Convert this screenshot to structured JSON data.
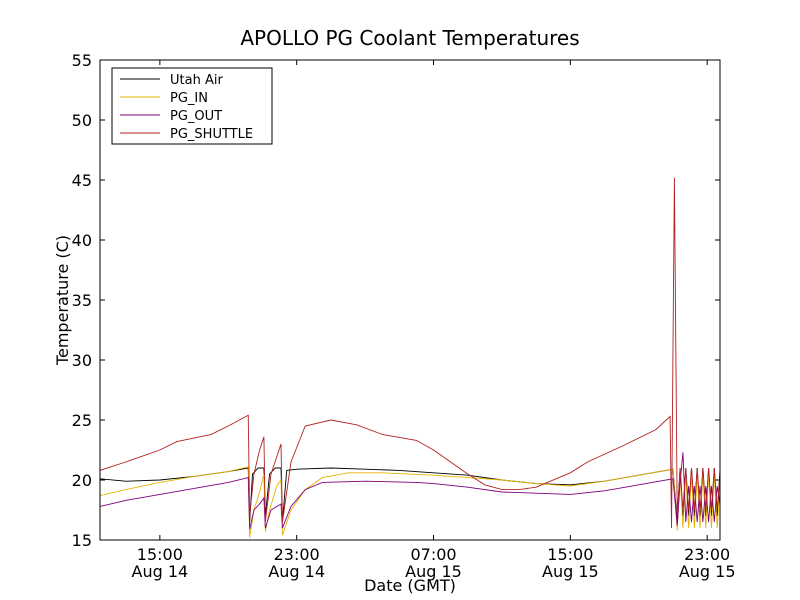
{
  "chart_data": {
    "type": "line",
    "title": "APOLLO PG Coolant Temperatures",
    "xlabel": "Date (GMT)",
    "ylabel": "Temperature (C)",
    "ylim": [
      15,
      55
    ],
    "xlim": [
      "2014-08-14 11:30",
      "2014-08-15 23:45"
    ],
    "grid": false,
    "legend_position": "top-left",
    "x_ticks": [
      {
        "x": "2014-08-14 15:00",
        "line1": "15:00",
        "line2": "Aug 14"
      },
      {
        "x": "2014-08-14 23:00",
        "line1": "23:00",
        "line2": "Aug 14"
      },
      {
        "x": "2014-08-15 07:00",
        "line1": "07:00",
        "line2": "Aug 15"
      },
      {
        "x": "2014-08-15 15:00",
        "line1": "15:00",
        "line2": "Aug 15"
      },
      {
        "x": "2014-08-15 23:00",
        "line1": "23:00",
        "line2": "Aug 15"
      }
    ],
    "y_ticks": [
      15,
      20,
      25,
      30,
      35,
      40,
      45,
      50,
      55
    ],
    "series": [
      {
        "name": "Utah Air",
        "color": "#000000",
        "points": [
          [
            "2014-08-14 11:30",
            20.1
          ],
          [
            "2014-08-14 13:00",
            19.9
          ],
          [
            "2014-08-14 15:00",
            20.0
          ],
          [
            "2014-08-14 17:00",
            20.3
          ],
          [
            "2014-08-14 19:00",
            20.7
          ],
          [
            "2014-08-14 20:10",
            21.0
          ],
          [
            "2014-08-14 20:15",
            16.5
          ],
          [
            "2014-08-14 20:25",
            20.5
          ],
          [
            "2014-08-14 20:45",
            21.0
          ],
          [
            "2014-08-14 21:05",
            21.0
          ],
          [
            "2014-08-14 21:10",
            17.0
          ],
          [
            "2014-08-14 21:25",
            20.5
          ],
          [
            "2014-08-14 21:45",
            21.0
          ],
          [
            "2014-08-14 22:05",
            21.0
          ],
          [
            "2014-08-14 22:10",
            16.5
          ],
          [
            "2014-08-14 22:25",
            20.8
          ],
          [
            "2014-08-14 23:00",
            20.9
          ],
          [
            "2014-08-15 01:00",
            21.0
          ],
          [
            "2014-08-15 03:00",
            20.9
          ],
          [
            "2014-08-15 05:00",
            20.8
          ],
          [
            "2014-08-15 07:00",
            20.6
          ],
          [
            "2014-08-15 09:00",
            20.4
          ],
          [
            "2014-08-15 11:00",
            20.0
          ],
          [
            "2014-08-15 13:00",
            19.7
          ],
          [
            "2014-08-15 15:00",
            19.6
          ],
          [
            "2014-08-15 17:00",
            19.9
          ],
          [
            "2014-08-15 19:00",
            20.4
          ],
          [
            "2014-08-15 21:00",
            20.9
          ],
          [
            "2014-08-15 21:15",
            16.5
          ],
          [
            "2014-08-15 21:25",
            21.0
          ],
          [
            "2014-08-15 21:35",
            17.0
          ],
          [
            "2014-08-15 21:45",
            21.0
          ],
          [
            "2014-08-15 21:55",
            17.0
          ],
          [
            "2014-08-15 22:05",
            21.0
          ],
          [
            "2014-08-15 22:15",
            17.0
          ],
          [
            "2014-08-15 22:25",
            21.0
          ],
          [
            "2014-08-15 22:35",
            17.0
          ],
          [
            "2014-08-15 22:45",
            21.0
          ],
          [
            "2014-08-15 22:55",
            17.0
          ],
          [
            "2014-08-15 23:05",
            21.0
          ],
          [
            "2014-08-15 23:15",
            17.0
          ],
          [
            "2014-08-15 23:25",
            21.0
          ],
          [
            "2014-08-15 23:35",
            17.0
          ],
          [
            "2014-08-15 23:45",
            20.8
          ]
        ]
      },
      {
        "name": "PG_IN",
        "color": "#e6b400",
        "points": [
          [
            "2014-08-14 11:30",
            18.7
          ],
          [
            "2014-08-14 13:00",
            19.2
          ],
          [
            "2014-08-14 15:00",
            19.8
          ],
          [
            "2014-08-14 17:00",
            20.3
          ],
          [
            "2014-08-14 19:00",
            20.7
          ],
          [
            "2014-08-14 20:10",
            21.1
          ],
          [
            "2014-08-14 20:15",
            15.2
          ],
          [
            "2014-08-14 20:30",
            17.5
          ],
          [
            "2014-08-14 20:50",
            19.0
          ],
          [
            "2014-08-14 21:05",
            20.5
          ],
          [
            "2014-08-14 21:10",
            15.7
          ],
          [
            "2014-08-14 21:25",
            17.5
          ],
          [
            "2014-08-14 21:50",
            19.5
          ],
          [
            "2014-08-14 22:05",
            20.0
          ],
          [
            "2014-08-14 22:10",
            15.4
          ],
          [
            "2014-08-14 22:40",
            17.5
          ],
          [
            "2014-08-14 23:30",
            19.2
          ],
          [
            "2014-08-15 00:30",
            20.2
          ],
          [
            "2014-08-15 02:00",
            20.6
          ],
          [
            "2014-08-15 04:00",
            20.6
          ],
          [
            "2014-08-15 07:00",
            20.4
          ],
          [
            "2014-08-15 09:00",
            20.2
          ],
          [
            "2014-08-15 11:00",
            20.0
          ],
          [
            "2014-08-15 13:00",
            19.7
          ],
          [
            "2014-08-15 15:00",
            19.5
          ],
          [
            "2014-08-15 17:00",
            19.9
          ],
          [
            "2014-08-15 19:00",
            20.4
          ],
          [
            "2014-08-15 21:00",
            20.9
          ],
          [
            "2014-08-15 21:15",
            15.8
          ],
          [
            "2014-08-15 21:25",
            20.5
          ],
          [
            "2014-08-15 21:35",
            16.0
          ],
          [
            "2014-08-15 21:45",
            20.5
          ],
          [
            "2014-08-15 21:55",
            16.0
          ],
          [
            "2014-08-15 22:05",
            20.5
          ],
          [
            "2014-08-15 22:15",
            16.0
          ],
          [
            "2014-08-15 22:25",
            20.5
          ],
          [
            "2014-08-15 22:35",
            16.0
          ],
          [
            "2014-08-15 22:45",
            20.5
          ],
          [
            "2014-08-15 22:55",
            16.0
          ],
          [
            "2014-08-15 23:05",
            20.5
          ],
          [
            "2014-08-15 23:15",
            16.0
          ],
          [
            "2014-08-15 23:25",
            20.5
          ],
          [
            "2014-08-15 23:35",
            16.0
          ],
          [
            "2014-08-15 23:45",
            19.5
          ]
        ]
      },
      {
        "name": "PG_OUT",
        "color": "#800080",
        "points": [
          [
            "2014-08-14 11:30",
            17.8
          ],
          [
            "2014-08-14 13:00",
            18.3
          ],
          [
            "2014-08-14 15:00",
            18.8
          ],
          [
            "2014-08-14 17:00",
            19.3
          ],
          [
            "2014-08-14 19:00",
            19.8
          ],
          [
            "2014-08-14 20:10",
            20.2
          ],
          [
            "2014-08-14 20:15",
            15.9
          ],
          [
            "2014-08-14 20:30",
            17.5
          ],
          [
            "2014-08-14 20:50",
            18.0
          ],
          [
            "2014-08-14 21:05",
            18.5
          ],
          [
            "2014-08-14 21:10",
            16.0
          ],
          [
            "2014-08-14 21:30",
            17.5
          ],
          [
            "2014-08-14 22:05",
            18.0
          ],
          [
            "2014-08-14 22:10",
            16.0
          ],
          [
            "2014-08-14 22:40",
            17.8
          ],
          [
            "2014-08-14 23:30",
            19.2
          ],
          [
            "2014-08-15 00:30",
            19.8
          ],
          [
            "2014-08-15 03:00",
            19.9
          ],
          [
            "2014-08-15 06:00",
            19.8
          ],
          [
            "2014-08-15 07:00",
            19.7
          ],
          [
            "2014-08-15 09:00",
            19.4
          ],
          [
            "2014-08-15 11:00",
            19.0
          ],
          [
            "2014-08-15 13:00",
            18.9
          ],
          [
            "2014-08-15 15:00",
            18.8
          ],
          [
            "2014-08-15 17:00",
            19.1
          ],
          [
            "2014-08-15 19:00",
            19.6
          ],
          [
            "2014-08-15 21:00",
            20.1
          ],
          [
            "2014-08-15 21:15",
            16.2
          ],
          [
            "2014-08-15 21:25",
            19.8
          ],
          [
            "2014-08-15 21:35",
            22.3
          ],
          [
            "2014-08-15 21:45",
            16.5
          ],
          [
            "2014-08-15 21:55",
            19.5
          ],
          [
            "2014-08-15 22:05",
            16.5
          ],
          [
            "2014-08-15 22:15",
            19.5
          ],
          [
            "2014-08-15 22:25",
            16.5
          ],
          [
            "2014-08-15 22:35",
            19.5
          ],
          [
            "2014-08-15 22:45",
            16.5
          ],
          [
            "2014-08-15 22:55",
            19.5
          ],
          [
            "2014-08-15 23:05",
            16.5
          ],
          [
            "2014-08-15 23:15",
            19.5
          ],
          [
            "2014-08-15 23:25",
            16.5
          ],
          [
            "2014-08-15 23:35",
            19.5
          ],
          [
            "2014-08-15 23:45",
            18.0
          ]
        ]
      },
      {
        "name": "PG_SHUTTLE",
        "color": "#b22222",
        "points": [
          [
            "2014-08-14 11:30",
            20.8
          ],
          [
            "2014-08-14 13:00",
            21.5
          ],
          [
            "2014-08-14 15:00",
            22.5
          ],
          [
            "2014-08-14 16:00",
            23.2
          ],
          [
            "2014-08-14 18:00",
            23.8
          ],
          [
            "2014-08-14 19:00",
            24.5
          ],
          [
            "2014-08-14 20:10",
            25.4
          ],
          [
            "2014-08-14 20:15",
            17.0
          ],
          [
            "2014-08-14 20:30",
            20.5
          ],
          [
            "2014-08-14 20:50",
            22.5
          ],
          [
            "2014-08-14 21:05",
            23.6
          ],
          [
            "2014-08-14 21:10",
            16.5
          ],
          [
            "2014-08-14 21:30",
            20.5
          ],
          [
            "2014-08-14 22:05",
            23.0
          ],
          [
            "2014-08-14 22:10",
            16.5
          ],
          [
            "2014-08-14 22:40",
            21.5
          ],
          [
            "2014-08-14 23:30",
            24.5
          ],
          [
            "2014-08-15 01:00",
            25.0
          ],
          [
            "2014-08-15 02:30",
            24.6
          ],
          [
            "2014-08-15 04:00",
            23.8
          ],
          [
            "2014-08-15 06:00",
            23.3
          ],
          [
            "2014-08-15 07:00",
            22.5
          ],
          [
            "2014-08-15 08:00",
            21.5
          ],
          [
            "2014-08-15 09:00",
            20.5
          ],
          [
            "2014-08-15 10:00",
            19.6
          ],
          [
            "2014-08-15 11:00",
            19.2
          ],
          [
            "2014-08-15 12:00",
            19.2
          ],
          [
            "2014-08-15 13:00",
            19.4
          ],
          [
            "2014-08-15 15:00",
            20.6
          ],
          [
            "2014-08-15 16:00",
            21.5
          ],
          [
            "2014-08-15 18:00",
            22.8
          ],
          [
            "2014-08-15 20:00",
            24.2
          ],
          [
            "2014-08-15 20:50",
            25.3
          ],
          [
            "2014-08-15 20:55",
            16.0
          ],
          [
            "2014-08-15 21:05",
            45.2
          ],
          [
            "2014-08-15 21:15",
            17.0
          ],
          [
            "2014-08-15 21:25",
            21.0
          ],
          [
            "2014-08-15 21:35",
            17.5
          ],
          [
            "2014-08-15 21:45",
            21.0
          ],
          [
            "2014-08-15 21:55",
            17.5
          ],
          [
            "2014-08-15 22:05",
            21.0
          ],
          [
            "2014-08-15 22:15",
            17.5
          ],
          [
            "2014-08-15 22:25",
            21.0
          ],
          [
            "2014-08-15 22:35",
            17.5
          ],
          [
            "2014-08-15 22:45",
            21.0
          ],
          [
            "2014-08-15 22:55",
            17.5
          ],
          [
            "2014-08-15 23:05",
            21.0
          ],
          [
            "2014-08-15 23:15",
            17.5
          ],
          [
            "2014-08-15 23:25",
            21.0
          ],
          [
            "2014-08-15 23:35",
            17.5
          ],
          [
            "2014-08-15 23:45",
            20.5
          ]
        ]
      }
    ]
  }
}
